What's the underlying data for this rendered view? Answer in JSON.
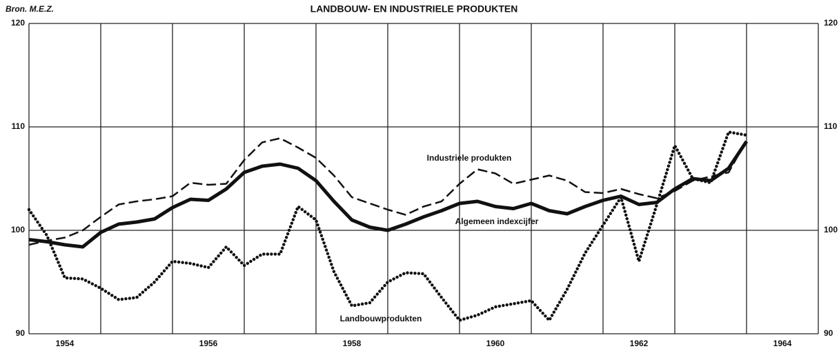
{
  "chart_data": {
    "type": "line",
    "title": "LANDBOUW- EN INDUSTRIELE PRODUKTEN",
    "source": "Bron. M.E.Z.",
    "x": [
      1954,
      1954.25,
      1954.5,
      1954.75,
      1955,
      1955.25,
      1955.5,
      1955.75,
      1956,
      1956.25,
      1956.5,
      1956.75,
      1957,
      1957.25,
      1957.5,
      1957.75,
      1958,
      1958.25,
      1958.5,
      1958.75,
      1959,
      1959.25,
      1959.5,
      1959.75,
      1960,
      1960.25,
      1960.5,
      1960.75,
      1961,
      1961.25,
      1961.5,
      1961.75,
      1962,
      1962.25,
      1962.5,
      1962.75,
      1963,
      1963.25,
      1963.5,
      1963.75,
      1964
    ],
    "series": [
      {
        "name": "Industriele produkten",
        "color": "#111111",
        "style": "dashed",
        "values": [
          98.6,
          99.0,
          99.3,
          100.0,
          101.3,
          102.5,
          102.8,
          103.0,
          103.3,
          104.6,
          104.4,
          104.5,
          106.8,
          108.5,
          108.9,
          108.0,
          107.0,
          105.3,
          103.2,
          102.6,
          102.0,
          101.5,
          102.3,
          102.8,
          104.5,
          105.9,
          105.5,
          104.5,
          104.9,
          105.3,
          104.8,
          103.7,
          103.6,
          104.0,
          103.5,
          103.1,
          103.8,
          104.8,
          105.2,
          105.6,
          108.7
        ]
      },
      {
        "name": "Algemeen indexcijfer",
        "color": "#111111",
        "style": "solid",
        "values": [
          99.1,
          98.9,
          98.6,
          98.4,
          99.8,
          100.6,
          100.8,
          101.1,
          102.2,
          103.0,
          102.9,
          104.0,
          105.6,
          106.2,
          106.4,
          106.0,
          104.8,
          102.8,
          101.0,
          100.3,
          100.0,
          100.6,
          101.3,
          101.9,
          102.6,
          102.8,
          102.3,
          102.1,
          102.6,
          101.9,
          101.6,
          102.3,
          102.9,
          103.3,
          102.5,
          102.7,
          104.0,
          105.0,
          104.8,
          106.0,
          108.6
        ]
      },
      {
        "name": "Landbouwprodukten",
        "color": "#111111",
        "style": "dotted",
        "values": [
          102.0,
          99.5,
          95.4,
          95.3,
          94.4,
          93.3,
          93.5,
          95.0,
          97.0,
          96.8,
          96.4,
          98.4,
          96.6,
          97.7,
          97.7,
          102.3,
          101.0,
          96.0,
          92.7,
          93.0,
          95.0,
          95.9,
          95.8,
          93.5,
          91.3,
          91.8,
          92.6,
          92.9,
          93.2,
          91.3,
          94.3,
          97.8,
          100.5,
          103.2,
          97.0,
          102.5,
          108.2,
          105.0,
          104.6,
          109.5,
          109.2
        ]
      }
    ],
    "xlim": [
      1954,
      1965
    ],
    "xgrid": [
      1954,
      1955,
      1956,
      1957,
      1958,
      1959,
      1960,
      1961,
      1962,
      1963,
      1964,
      1965
    ],
    "xticks": [
      {
        "value": 1954.5,
        "label": "1954"
      },
      {
        "value": 1956.5,
        "label": "1956"
      },
      {
        "value": 1958.5,
        "label": "1958"
      },
      {
        "value": 1960.5,
        "label": "1960"
      },
      {
        "value": 1962.5,
        "label": "1962"
      },
      {
        "value": 1964.5,
        "label": "1964"
      }
    ],
    "ylim": [
      90,
      120
    ],
    "yticks": [
      90,
      100,
      110,
      120
    ],
    "y2lim": [
      90,
      120
    ],
    "y2ticks": [
      90,
      100,
      110,
      120
    ],
    "grid": true
  }
}
